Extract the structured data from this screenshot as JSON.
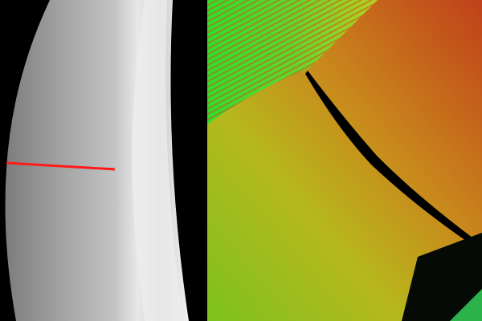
{
  "panels": {
    "left": {
      "kind": "depth-map-grayscale",
      "marker_color": "#ff1a1a"
    },
    "right": {
      "kind": "point-cloud-height-colored"
    }
  },
  "colors": {
    "background": "#000000",
    "depth_dark": "#8a8a8a",
    "depth_light": "#e6e6e6",
    "height_low": "#22dd22",
    "height_mid": "#c8c81e",
    "height_high": "#c8461e"
  }
}
